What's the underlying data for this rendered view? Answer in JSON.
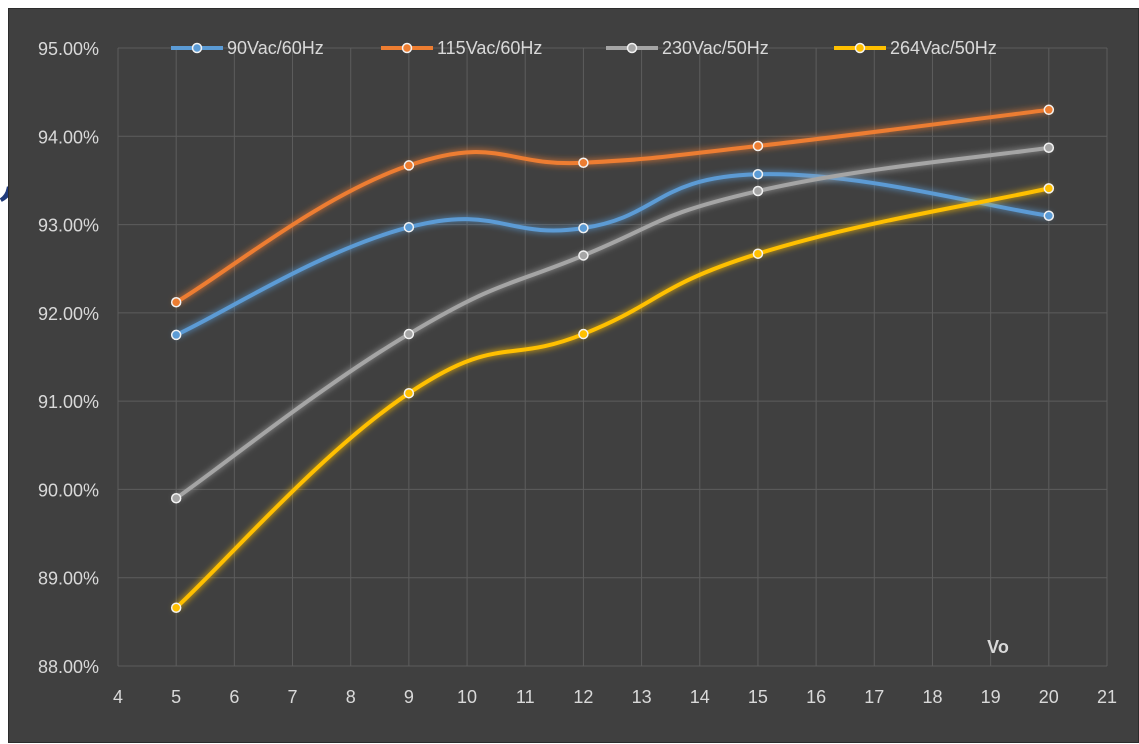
{
  "chart_data": {
    "type": "line",
    "xlabel": "Vo",
    "ylabel": "",
    "xlim": [
      4,
      21
    ],
    "xticks": [
      4,
      5,
      6,
      7,
      8,
      9,
      10,
      11,
      12,
      13,
      14,
      15,
      16,
      17,
      18,
      19,
      20,
      21
    ],
    "ylim": [
      0.88,
      0.95
    ],
    "yticks": [
      0.88,
      0.89,
      0.9,
      0.91,
      0.92,
      0.93,
      0.94,
      0.95
    ],
    "ytick_labels": [
      "88.00%",
      "89.00%",
      "90.00%",
      "91.00%",
      "92.00%",
      "93.00%",
      "94.00%",
      "95.00%"
    ],
    "grid": true,
    "legend_position": "top",
    "x": [
      5,
      9,
      12,
      15,
      20
    ],
    "series": [
      {
        "name": "90Vac/60Hz",
        "color": "#5b9bd5",
        "values": [
          0.9175,
          0.9297,
          0.9296,
          0.9357,
          0.931
        ]
      },
      {
        "name": "115Vac/60Hz",
        "color": "#ed7d31",
        "values": [
          0.9212,
          0.9367,
          0.937,
          0.9389,
          0.943
        ]
      },
      {
        "name": "230Vac/50Hz",
        "color": "#a5a5a5",
        "values": [
          0.899,
          0.9176,
          0.9265,
          0.9338,
          0.9387
        ]
      },
      {
        "name": "264Vac/50Hz",
        "color": "#ffc000",
        "values": [
          0.8866,
          0.9109,
          0.9176,
          0.9267,
          0.9341
        ]
      }
    ]
  },
  "page": {
    "left_mark": ","
  }
}
